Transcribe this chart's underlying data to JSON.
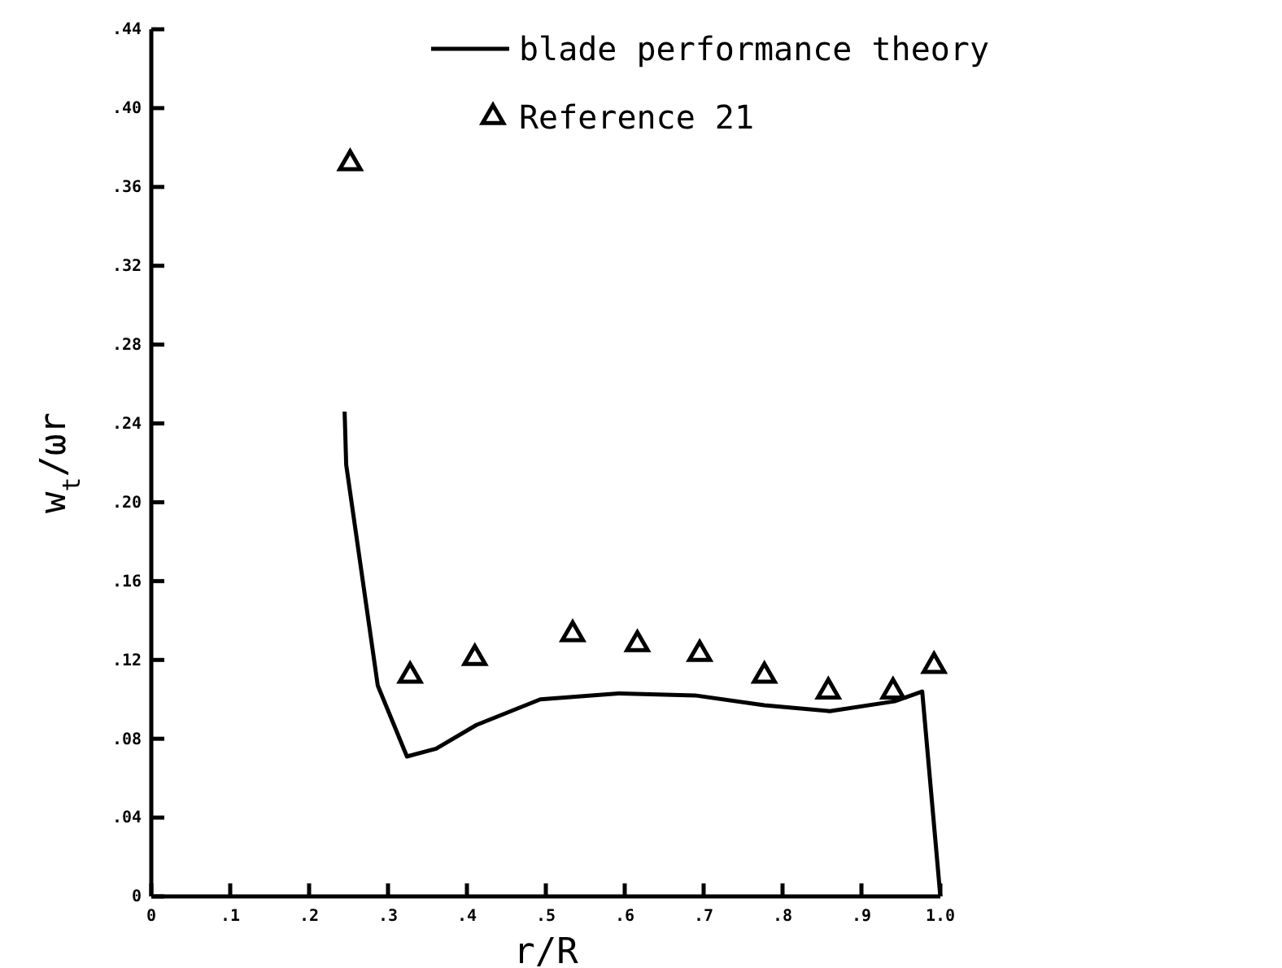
{
  "chart_data": {
    "type": "line",
    "xlabel": "r/R",
    "ylabel": "w$_{t}$/ωr",
    "legend": "top right",
    "xlim": [
      0,
      1.0
    ],
    "ylim": [
      0,
      0.44
    ],
    "xticks": [
      0,
      {
        "value": 0.1,
        "label": ".1"
      },
      {
        "value": 0.2,
        "label": ".2"
      },
      {
        "value": 0.3,
        "label": ".3"
      },
      {
        "value": 0.4,
        "label": ".4"
      },
      {
        "value": 0.5,
        "label": ".5"
      },
      {
        "value": 0.6,
        "label": ".6"
      },
      {
        "value": 0.7,
        "label": ".7"
      },
      {
        "value": 0.8,
        "label": ".8"
      },
      {
        "value": 0.9,
        "label": ".9"
      },
      {
        "value": 1.0,
        "label": "1.0"
      }
    ],
    "yticks": [
      0,
      {
        "value": 0.04,
        "label": ".04"
      },
      {
        "value": 0.08,
        "label": ".08"
      },
      {
        "value": 0.12,
        "label": ".12"
      },
      {
        "value": 0.16,
        "label": ".16"
      },
      {
        "value": 0.2,
        "label": ".20"
      },
      {
        "value": 0.24,
        "label": ".24"
      },
      {
        "value": 0.28,
        "label": ".28"
      },
      {
        "value": 0.32,
        "label": ".32"
      },
      {
        "value": 0.36,
        "label": ".36"
      },
      {
        "value": 0.4,
        "label": ".40"
      },
      {
        "value": 0.44,
        "label": ".44"
      }
    ],
    "series": [
      {
        "name": "blade performance theory",
        "color": "#000000",
        "marker": "none",
        "line_style": "solid",
        "x": [
          0.245,
          0.247,
          0.287,
          0.324,
          0.361,
          0.412,
          0.493,
          0.592,
          0.689,
          0.777,
          0.86,
          0.942,
          0.977,
          1.0
        ],
        "values": [
          0.246,
          0.219,
          0.107,
          0.071,
          0.075,
          0.087,
          0.1,
          0.103,
          0.102,
          0.097,
          0.094,
          0.099,
          0.104,
          0
        ]
      },
      {
        "name": "Reference 21",
        "type": "scatter",
        "color": "#000000",
        "marker": "triangle",
        "x": [
          0.252,
          0.328,
          0.41,
          0.534,
          0.616,
          0.695,
          0.777,
          0.858,
          0.94,
          0.992
        ],
        "values": [
          0.372,
          0.112,
          0.121,
          0.133,
          0.128,
          0.123,
          0.112,
          0.104,
          0.104,
          0.117
        ]
      }
    ]
  }
}
